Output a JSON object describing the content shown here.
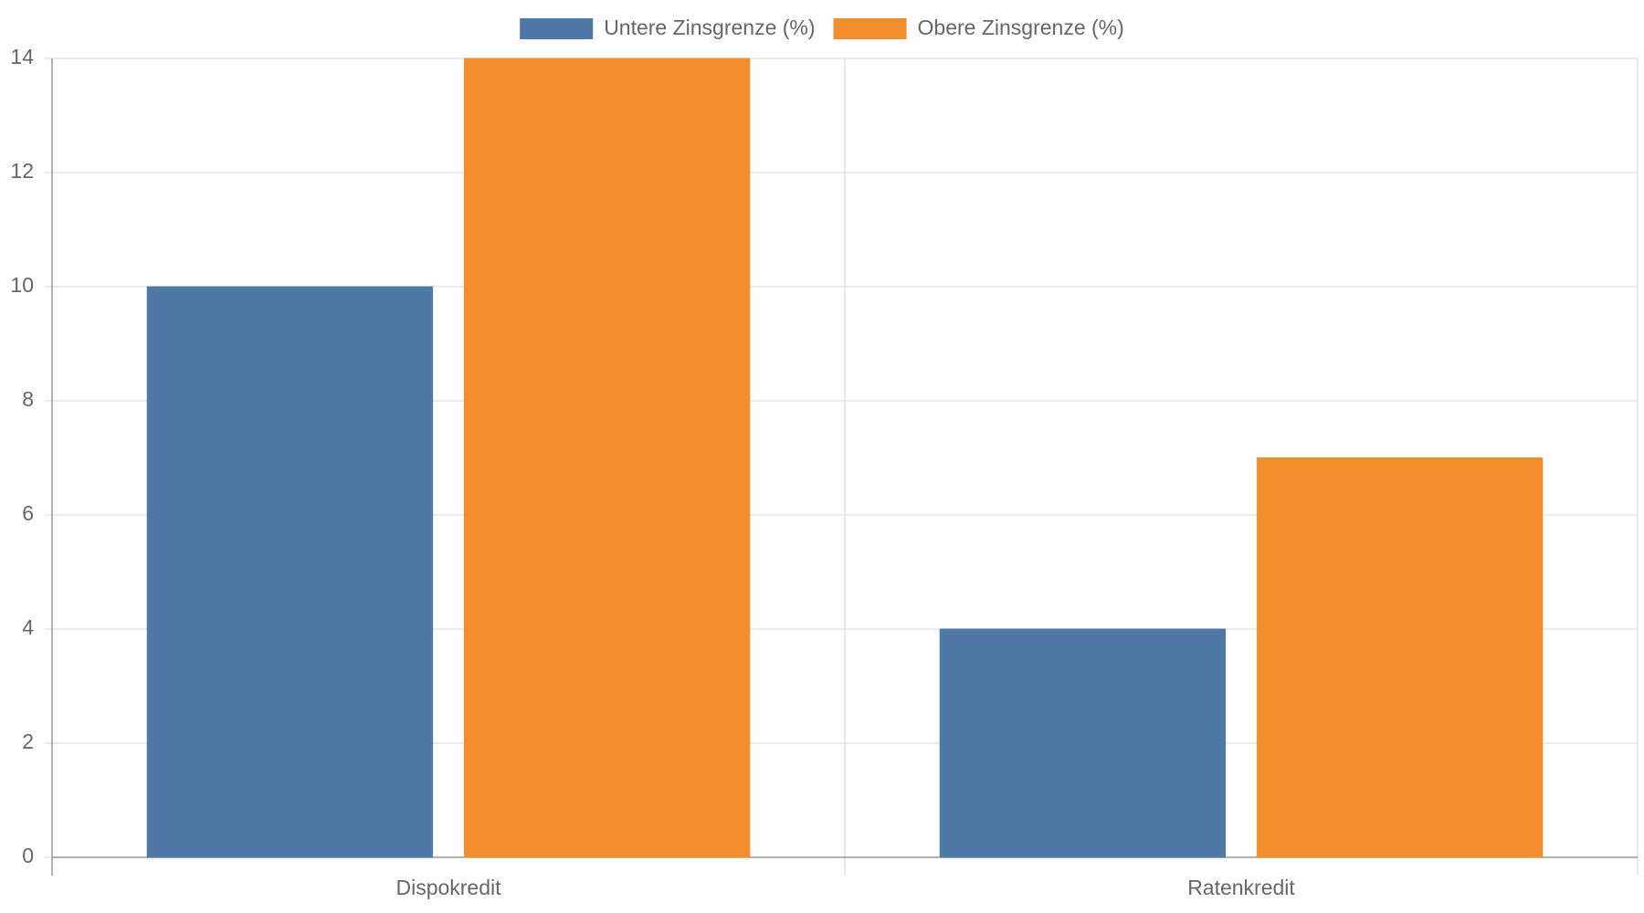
{
  "chart_data": {
    "type": "bar",
    "categories": [
      "Dispokredit",
      "Ratenkredit"
    ],
    "series": [
      {
        "name": "Untere Zinsgrenze (%)",
        "color": "#4e79a7",
        "values": [
          10,
          4
        ]
      },
      {
        "name": "Obere Zinsgrenze (%)",
        "color": "#f28e2b",
        "values": [
          14,
          7
        ]
      }
    ],
    "ylim": [
      0,
      14
    ],
    "yticks": [
      0,
      2,
      4,
      6,
      8,
      10,
      12,
      14
    ],
    "grid": true,
    "legend": "top"
  }
}
